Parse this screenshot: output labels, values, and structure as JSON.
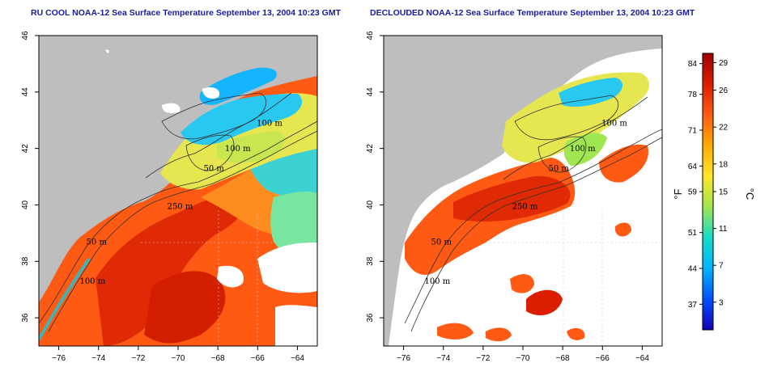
{
  "panels": [
    {
      "title": "RU COOL NOAA-12 Sea Surface Temperature September 13, 2004 10:23 GMT"
    },
    {
      "title": "DECLOUDED NOAA-12 Sea Surface Temperature September 13, 2004 10:23 GMT"
    }
  ],
  "axes": {
    "lon_ticks": [
      -76,
      -74,
      -72,
      -70,
      -68,
      -66,
      -64
    ],
    "lat_ticks": [
      36,
      38,
      40,
      42,
      44,
      46
    ],
    "lon_range": [
      -77,
      -63
    ],
    "lat_range": [
      35,
      46
    ]
  },
  "contour_labels": [
    {
      "text": "100 m",
      "lon": -65.4,
      "lat": 42.8
    },
    {
      "text": "100 m",
      "lon": -67.0,
      "lat": 41.9
    },
    {
      "text": "50 m",
      "lon": -68.2,
      "lat": 41.2
    },
    {
      "text": "250 m",
      "lon": -69.9,
      "lat": 39.85
    },
    {
      "text": "50 m",
      "lon": -74.1,
      "lat": 38.6
    },
    {
      "text": "100 m",
      "lon": -74.3,
      "lat": 37.2
    }
  ],
  "colorbar": {
    "fahrenheit_label": "°F",
    "celsius_label": "°C",
    "fahrenheit_ticks": [
      "84",
      "78",
      "71",
      "64",
      "59",
      "51",
      "44",
      "37"
    ],
    "celsius_ticks": [
      "29",
      "26",
      "22",
      "18",
      "15",
      "11",
      "7",
      "3"
    ],
    "celsius_range": [
      0,
      30
    ],
    "colors": [
      "#1400b4",
      "#0050ff",
      "#00b4ff",
      "#14dcc8",
      "#a0e650",
      "#ffe628",
      "#ffaa00",
      "#ff5a14",
      "#dc1e00",
      "#a00000"
    ]
  },
  "colors": {
    "land": "#bebebe",
    "cloud": "#ffffff",
    "title": "#1a1aa0"
  }
}
